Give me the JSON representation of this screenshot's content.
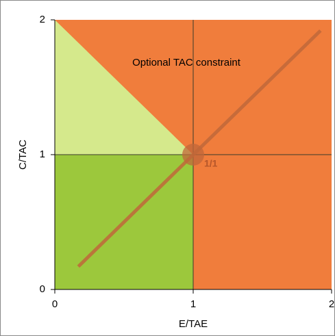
{
  "chart_data": {
    "type": "line",
    "xlabel": "E/TAE",
    "ylabel": "C/TAC",
    "annotations": [
      "Optional TAC constraint",
      "1/1"
    ],
    "x": [
      0.17,
      1.92
    ],
    "series": [
      {
        "color": "#c0673a",
        "values": [
          0.17,
          1.92
        ]
      }
    ],
    "point": {
      "x": 1,
      "y": 1,
      "color": "#c0673a"
    },
    "xlim": [
      0,
      2
    ],
    "ylim": [
      0,
      2
    ],
    "xticks": [
      0,
      1,
      2
    ],
    "yticks": [
      0,
      1,
      2
    ],
    "grid": true,
    "zone_colors": [
      "#d5e98c",
      "#9cc83c",
      "#f07d3c"
    ]
  }
}
